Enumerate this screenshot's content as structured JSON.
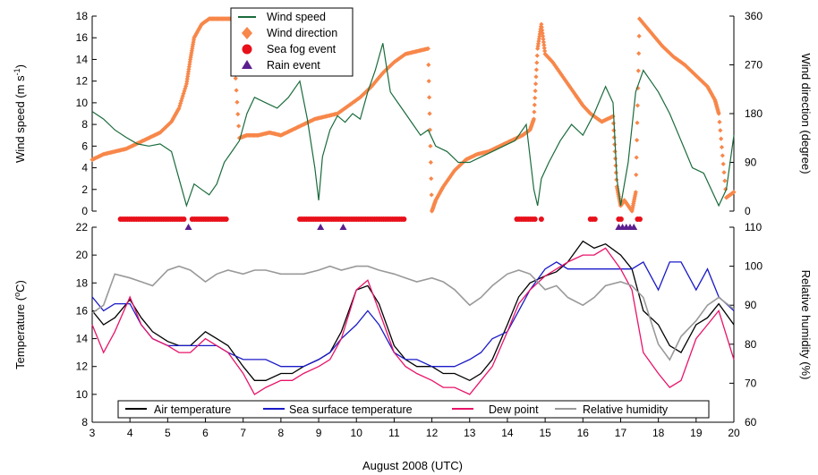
{
  "chart_data": [
    {
      "type": "line",
      "panel": "top",
      "xlabel": "August 2008 (UTC)",
      "xlim": [
        3,
        20
      ],
      "x_ticks": [
        "3",
        "4",
        "5",
        "6",
        "7",
        "8",
        "9",
        "10",
        "11",
        "12",
        "13",
        "14",
        "15",
        "16",
        "17",
        "18",
        "19",
        "20"
      ],
      "ylabel_left_main": "Wind speed (m s",
      "ylabel_left_sup": "-1",
      "ylabel_left_tail": ")",
      "ylim_left": [
        0,
        18
      ],
      "y_ticks_left": [
        "0",
        "2",
        "4",
        "6",
        "8",
        "10",
        "12",
        "14",
        "16",
        "18"
      ],
      "ylabel_right": "Wind direction (degree)",
      "ylim_right": [
        0,
        360
      ],
      "y_ticks_right": [
        "0",
        "90",
        "180",
        "270",
        "360"
      ],
      "legend_position": "top-center",
      "series": [
        {
          "name": "Wind speed",
          "axis": "left",
          "color": "#1a6b3c",
          "x": [
            3.0,
            3.3,
            3.6,
            3.9,
            4.2,
            4.5,
            4.8,
            5.1,
            5.3,
            5.5,
            5.7,
            5.9,
            6.1,
            6.3,
            6.5,
            6.7,
            6.9,
            7.1,
            7.3,
            7.6,
            7.9,
            8.2,
            8.5,
            8.7,
            8.9,
            9.0,
            9.1,
            9.3,
            9.5,
            9.7,
            9.9,
            10.1,
            10.3,
            10.5,
            10.7,
            10.9,
            11.1,
            11.3,
            11.5,
            11.7,
            11.9,
            12.1,
            12.4,
            12.7,
            13.0,
            13.3,
            13.6,
            13.9,
            14.2,
            14.5,
            14.7,
            14.8,
            14.9,
            15.1,
            15.4,
            15.7,
            16.0,
            16.3,
            16.6,
            16.8,
            16.9,
            17.0,
            17.2,
            17.4,
            17.6,
            17.8,
            18.0,
            18.3,
            18.6,
            18.9,
            19.2,
            19.4,
            19.6,
            19.8,
            20.0
          ],
          "values": [
            9.2,
            8.5,
            7.5,
            6.8,
            6.2,
            6.0,
            6.2,
            5.5,
            3.0,
            0.5,
            2.5,
            2.0,
            1.5,
            2.5,
            4.5,
            5.5,
            6.5,
            9.0,
            10.5,
            10.0,
            9.5,
            10.5,
            12.0,
            8.5,
            4.0,
            1.0,
            5.0,
            7.5,
            8.8,
            8.2,
            9.0,
            8.5,
            11.0,
            13.0,
            15.5,
            11.0,
            10.0,
            9.0,
            8.0,
            7.0,
            7.5,
            6.0,
            5.5,
            4.5,
            4.5,
            5.0,
            5.5,
            6.0,
            6.5,
            8.0,
            2.0,
            0.5,
            3.0,
            4.5,
            6.5,
            8.0,
            7.0,
            9.0,
            11.5,
            10.0,
            3.0,
            0.5,
            4.5,
            11.0,
            13.0,
            12.0,
            11.0,
            9.0,
            6.5,
            4.0,
            3.5,
            2.0,
            0.5,
            2.0,
            7.0
          ]
        },
        {
          "name": "Wind direction",
          "axis": "right",
          "color": "#f7874a",
          "x": [
            3.0,
            3.3,
            3.6,
            3.9,
            4.2,
            4.5,
            4.8,
            5.1,
            5.3,
            5.5,
            5.6,
            5.7,
            5.9,
            6.1,
            6.3,
            6.5,
            6.7,
            6.9,
            7.1,
            7.4,
            7.7,
            8.0,
            8.3,
            8.6,
            8.9,
            9.2,
            9.5,
            9.8,
            10.1,
            10.4,
            10.7,
            11.0,
            11.3,
            11.6,
            11.9,
            12.0,
            12.1,
            12.3,
            12.6,
            12.9,
            13.2,
            13.5,
            13.8,
            14.1,
            14.4,
            14.6,
            14.7,
            14.8,
            14.9,
            15.0,
            15.2,
            15.5,
            15.8,
            16.0,
            16.2,
            16.5,
            16.8,
            16.9,
            17.0,
            17.1,
            17.3,
            17.4,
            17.5,
            17.8,
            18.1,
            18.4,
            18.7,
            19.0,
            19.3,
            19.5,
            19.6,
            19.8,
            20.0
          ],
          "values": [
            95,
            105,
            110,
            115,
            125,
            135,
            145,
            165,
            190,
            235,
            280,
            320,
            345,
            355,
            355,
            355,
            355,
            135,
            140,
            140,
            145,
            140,
            150,
            160,
            170,
            175,
            180,
            195,
            210,
            230,
            255,
            275,
            290,
            295,
            300,
            0,
            20,
            45,
            75,
            95,
            105,
            110,
            120,
            130,
            140,
            150,
            170,
            300,
            345,
            290,
            275,
            245,
            215,
            195,
            180,
            165,
            175,
            45,
            10,
            20,
            0,
            35,
            355,
            330,
            305,
            285,
            270,
            250,
            230,
            205,
            180,
            25,
            35
          ]
        },
        {
          "name": "Sea fog event",
          "axis": "left",
          "color": "#e8101a",
          "segments": [
            [
              3.75,
              5.45
            ],
            [
              5.65,
              6.6
            ],
            [
              8.5,
              11.3
            ],
            [
              14.25,
              14.75
            ],
            [
              14.9,
              14.95
            ],
            [
              16.2,
              16.35
            ],
            [
              16.95,
              17.05
            ],
            [
              17.45,
              17.55
            ]
          ]
        },
        {
          "name": "Rain event",
          "axis": "left",
          "color": "#5b1f8f",
          "x": [
            5.55,
            9.05,
            9.65,
            16.95,
            17.05,
            17.15,
            17.25,
            17.35
          ]
        }
      ]
    },
    {
      "type": "line",
      "panel": "bottom",
      "xlabel": "August 2008 (UTC)",
      "xlim": [
        3,
        20
      ],
      "ylabel_left_main": "Temperature (",
      "ylabel_left_sup": "o",
      "ylabel_left_tail": "C)",
      "ylim_left": [
        8,
        22
      ],
      "y_ticks_left": [
        "8",
        "10",
        "12",
        "14",
        "16",
        "18",
        "20",
        "22"
      ],
      "ylabel_right": "Relative humidity (%)",
      "ylim_right": [
        60,
        110
      ],
      "y_ticks_right": [
        "60",
        "70",
        "80",
        "90",
        "100",
        "110"
      ],
      "legend_position": "bottom-center",
      "x": [
        3.0,
        3.3,
        3.6,
        4.0,
        4.3,
        4.6,
        5.0,
        5.3,
        5.6,
        6.0,
        6.3,
        6.6,
        7.0,
        7.3,
        7.6,
        8.0,
        8.3,
        8.6,
        9.0,
        9.3,
        9.6,
        10.0,
        10.3,
        10.6,
        11.0,
        11.3,
        11.6,
        12.0,
        12.3,
        12.6,
        13.0,
        13.3,
        13.6,
        14.0,
        14.3,
        14.6,
        15.0,
        15.3,
        15.6,
        16.0,
        16.3,
        16.6,
        17.0,
        17.3,
        17.6,
        18.0,
        18.3,
        18.6,
        19.0,
        19.3,
        19.6,
        20.0
      ],
      "series": [
        {
          "name": "Air temperature",
          "color": "#000000",
          "values": [
            16.0,
            15.0,
            15.5,
            16.8,
            15.5,
            14.5,
            13.8,
            13.5,
            13.5,
            14.5,
            14.0,
            13.5,
            12.0,
            11.0,
            11.0,
            11.5,
            11.5,
            12.0,
            12.5,
            13.0,
            14.5,
            17.5,
            17.8,
            16.5,
            13.5,
            12.5,
            12.0,
            12.0,
            11.5,
            11.5,
            11.0,
            11.5,
            12.5,
            15.0,
            17.0,
            18.0,
            18.5,
            18.8,
            19.5,
            21.0,
            20.5,
            20.8,
            20.0,
            19.0,
            16.0,
            15.0,
            13.5,
            13.0,
            15.0,
            15.5,
            16.5,
            15.0
          ]
        },
        {
          "name": "Sea surface temperature",
          "color": "#1a1ac8",
          "values": [
            17.0,
            16.0,
            16.5,
            16.5,
            15.0,
            14.0,
            13.5,
            13.5,
            13.5,
            13.5,
            13.5,
            13.0,
            12.5,
            12.5,
            12.5,
            12.0,
            12.0,
            12.0,
            12.5,
            13.0,
            14.0,
            15.0,
            16.0,
            15.0,
            13.0,
            12.5,
            12.5,
            12.0,
            12.0,
            12.0,
            12.5,
            13.0,
            14.0,
            14.5,
            16.0,
            17.5,
            19.0,
            19.5,
            19.0,
            19.0,
            19.0,
            19.0,
            19.0,
            19.0,
            19.5,
            17.5,
            19.5,
            19.5,
            17.5,
            19.0,
            17.0,
            16.0
          ]
        },
        {
          "name": "Dew point",
          "color": "#e8146a",
          "values": [
            15.0,
            13.0,
            14.5,
            17.0,
            15.0,
            14.0,
            13.5,
            13.0,
            13.0,
            14.0,
            13.5,
            13.0,
            11.5,
            10.0,
            10.5,
            11.0,
            11.0,
            11.5,
            12.0,
            12.5,
            14.0,
            17.5,
            18.2,
            16.0,
            13.0,
            12.0,
            11.5,
            11.0,
            10.5,
            10.5,
            10.0,
            11.0,
            12.0,
            14.5,
            16.5,
            17.5,
            18.5,
            19.0,
            19.5,
            20.0,
            20.0,
            20.5,
            19.0,
            17.5,
            13.0,
            11.5,
            10.5,
            11.0,
            14.0,
            15.0,
            16.0,
            12.5
          ]
        },
        {
          "name": "Relative humidity",
          "axis": "right",
          "color": "#999999",
          "values": [
            88,
            90,
            98,
            97,
            96,
            95,
            99,
            100,
            99,
            96,
            98,
            99,
            98,
            99,
            99,
            98,
            98,
            98,
            99,
            100,
            99,
            100,
            100,
            99,
            98,
            97,
            96,
            97,
            96,
            94,
            90,
            92,
            95,
            98,
            99,
            98,
            94,
            95,
            92,
            90,
            92,
            95,
            96,
            95,
            92,
            80,
            76,
            82,
            86,
            90,
            92,
            89
          ]
        }
      ]
    }
  ]
}
